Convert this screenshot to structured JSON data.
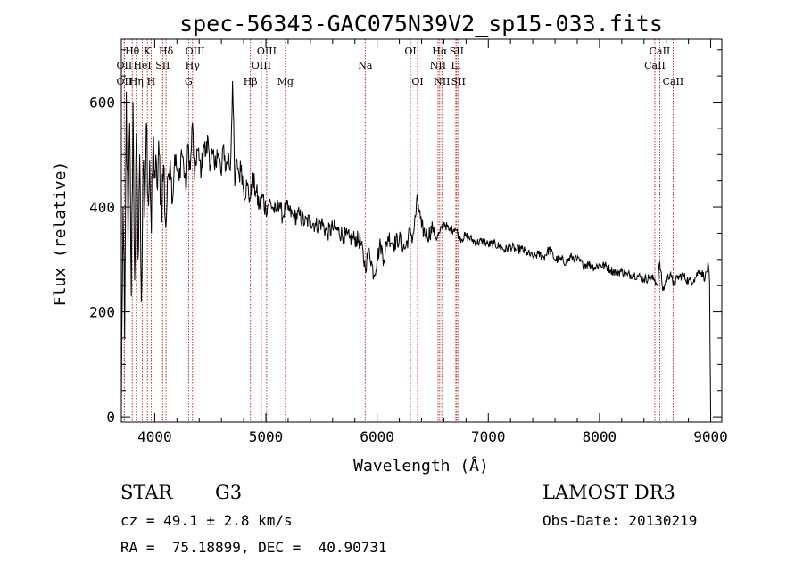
{
  "chart_data": {
    "type": "line",
    "title": "spec-56343-GAC075N39V2_sp15-033.fits",
    "xlabel": "Wavelength (Å)",
    "ylabel": "Flux (relative)",
    "xlim": [
      3700,
      9100
    ],
    "ylim": [
      -10,
      720
    ],
    "xticks": [
      4000,
      5000,
      6000,
      7000,
      8000,
      9000
    ],
    "yticks": [
      0,
      200,
      400,
      600
    ],
    "series": [
      {
        "name": "flux",
        "color": "#000000",
        "x": [
          3700,
          3715,
          3730,
          3745,
          3760,
          3775,
          3790,
          3805,
          3820,
          3835,
          3850,
          3865,
          3880,
          3895,
          3910,
          3925,
          3940,
          3955,
          3970,
          3985,
          4000,
          4020,
          4040,
          4060,
          4080,
          4100,
          4120,
          4140,
          4160,
          4180,
          4200,
          4220,
          4240,
          4260,
          4280,
          4300,
          4320,
          4340,
          4360,
          4380,
          4400,
          4420,
          4440,
          4460,
          4480,
          4500,
          4520,
          4540,
          4560,
          4580,
          4600,
          4620,
          4640,
          4660,
          4680,
          4700,
          4720,
          4740,
          4760,
          4780,
          4800,
          4830,
          4861,
          4880,
          4910,
          4940,
          4970,
          5000,
          5030,
          5060,
          5090,
          5120,
          5150,
          5175,
          5200,
          5250,
          5300,
          5350,
          5400,
          5450,
          5500,
          5550,
          5600,
          5650,
          5700,
          5750,
          5800,
          5850,
          5893,
          5930,
          5970,
          6000,
          6030,
          6060,
          6100,
          6150,
          6200,
          6250,
          6300,
          6320,
          6364,
          6400,
          6450,
          6500,
          6530,
          6563,
          6600,
          6650,
          6700,
          6750,
          6800,
          6850,
          6900,
          6950,
          7000,
          7050,
          7100,
          7150,
          7200,
          7250,
          7300,
          7350,
          7400,
          7450,
          7500,
          7550,
          7600,
          7650,
          7700,
          7750,
          7800,
          7850,
          7900,
          7950,
          8000,
          8050,
          8100,
          8150,
          8200,
          8250,
          8300,
          8350,
          8400,
          8450,
          8498,
          8520,
          8542,
          8570,
          8600,
          8640,
          8662,
          8700,
          8750,
          8800,
          8850,
          8900,
          8950,
          8980,
          8990,
          8995,
          9000
        ],
        "values": [
          20,
          400,
          150,
          620,
          320,
          560,
          230,
          600,
          260,
          540,
          300,
          500,
          220,
          470,
          380,
          560,
          420,
          490,
          350,
          520,
          470,
          440,
          500,
          400,
          480,
          360,
          460,
          490,
          410,
          500,
          470,
          450,
          510,
          480,
          430,
          520,
          470,
          560,
          450,
          510,
          490,
          470,
          520,
          500,
          530,
          480,
          500,
          470,
          510,
          490,
          460,
          520,
          470,
          500,
          470,
          640,
          440,
          490,
          460,
          480,
          430,
          440,
          415,
          450,
          430,
          400,
          420,
          395,
          410,
          400,
          390,
          410,
          380,
          400,
          395,
          380,
          385,
          370,
          375,
          365,
          370,
          350,
          360,
          355,
          345,
          340,
          340,
          335,
          285,
          320,
          270,
          300,
          330,
          300,
          345,
          330,
          340,
          320,
          355,
          340,
          415,
          360,
          345,
          360,
          340,
          350,
          370,
          355,
          360,
          340,
          345,
          338,
          332,
          335,
          328,
          330,
          325,
          318,
          325,
          318,
          320,
          312,
          305,
          310,
          305,
          320,
          300,
          300,
          295,
          305,
          300,
          290,
          292,
          285,
          290,
          288,
          280,
          275,
          278,
          270,
          272,
          268,
          262,
          265,
          262,
          250,
          295,
          240,
          260,
          275,
          250,
          265,
          270,
          258,
          262,
          280,
          265,
          290,
          255,
          120,
          5
        ]
      }
    ],
    "line_markers": [
      {
        "label": "OII",
        "wavelength": 3727,
        "row": 2
      },
      {
        "label": "OII",
        "wavelength": 3727,
        "row": 3
      },
      {
        "label": "Hθ",
        "wavelength": 3798,
        "row": 1
      },
      {
        "label": "Hη",
        "wavelength": 3835,
        "row": 3
      },
      {
        "label": "HeI",
        "wavelength": 3889,
        "row": 2
      },
      {
        "label": "K",
        "wavelength": 3934,
        "row": 1
      },
      {
        "label": "SII",
        "wavelength": 4072,
        "row": 2
      },
      {
        "label": "H",
        "wavelength": 3968,
        "row": 3
      },
      {
        "label": "Hδ",
        "wavelength": 4102,
        "row": 1
      },
      {
        "label": "G",
        "wavelength": 4305,
        "row": 3
      },
      {
        "label": "Hγ",
        "wavelength": 4340,
        "row": 2
      },
      {
        "label": "OIII",
        "wavelength": 4363,
        "row": 1
      },
      {
        "label": "Hβ",
        "wavelength": 4861,
        "row": 3
      },
      {
        "label": "OIII",
        "wavelength": 4959,
        "row": 2
      },
      {
        "label": "OIII",
        "wavelength": 5007,
        "row": 1
      },
      {
        "label": "Mg",
        "wavelength": 5175,
        "row": 3
      },
      {
        "label": "Na",
        "wavelength": 5893,
        "row": 2
      },
      {
        "label": "OI",
        "wavelength": 6300,
        "row": 1
      },
      {
        "label": "OI",
        "wavelength": 6364,
        "row": 3
      },
      {
        "label": "NII",
        "wavelength": 6548,
        "row": 2
      },
      {
        "label": "Hα",
        "wavelength": 6563,
        "row": 1
      },
      {
        "label": "NII",
        "wavelength": 6583,
        "row": 3
      },
      {
        "label": "Li",
        "wavelength": 6708,
        "row": 2
      },
      {
        "label": "SII",
        "wavelength": 6716,
        "row": 1
      },
      {
        "label": "SII",
        "wavelength": 6731,
        "row": 3
      },
      {
        "label": "CaII",
        "wavelength": 8498,
        "row": 2
      },
      {
        "label": "CaII",
        "wavelength": 8542,
        "row": 1
      },
      {
        "label": "CaII",
        "wavelength": 8662,
        "row": 3
      }
    ]
  },
  "info": {
    "object_class": "STAR",
    "subclass": "G3",
    "survey": "LAMOST DR3",
    "redshift": "cz = 49.1 ± 2.8 km/s",
    "obs_date": "Obs-Date: 20130219",
    "coords": "RA =  75.18899, DEC =  40.90731"
  },
  "colors": {
    "marker_line": "#b22222",
    "spectrum": "#000000",
    "axes": "#000000"
  }
}
